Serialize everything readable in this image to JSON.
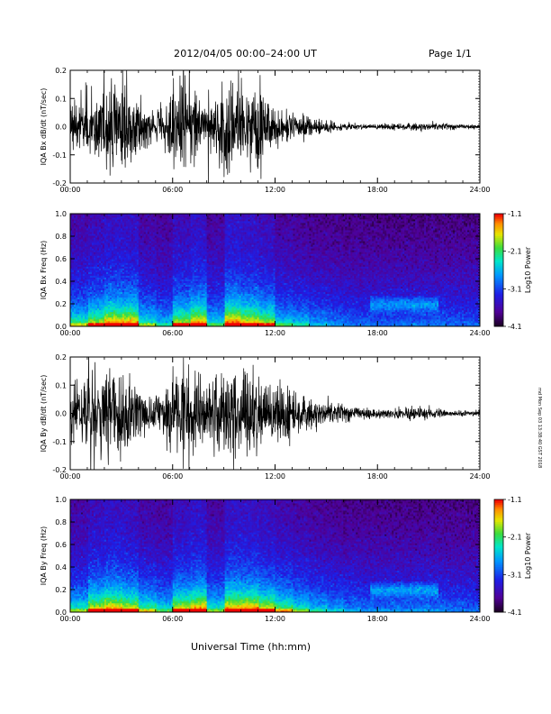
{
  "header": {
    "title": "2012/04/05  00:00–24:00 UT",
    "page": "Page 1/1"
  },
  "footer": {
    "xaxis_title": "Universal Time (hh:mm)"
  },
  "side_stamp": "md Mon Sep 03 13:38:40 GST 2018",
  "chart_data": [
    {
      "type": "line",
      "name": "panel-bx-timeseries",
      "ylabel": "IQA Bx dB/dt (nT/sec)",
      "xlim_hours": [
        0,
        24
      ],
      "ylim": [
        -0.2,
        0.2
      ],
      "xticks": [
        "00:00",
        "06:00",
        "12:00",
        "18:00",
        "24:00"
      ],
      "yticks": [
        "0.2",
        "0.1",
        "0.0",
        "-0.1",
        "-0.2"
      ],
      "amplitude_hourly": [
        0.14,
        0.2,
        0.26,
        0.26,
        0.12,
        0.08,
        0.2,
        0.26,
        0.1,
        0.28,
        0.24,
        0.2,
        0.1,
        0.08,
        0.05,
        0.035,
        0.02,
        0.015,
        0.015,
        0.015,
        0.02,
        0.02,
        0.015,
        0.012
      ]
    },
    {
      "type": "heatmap",
      "name": "panel-bx-spectrogram",
      "ylabel": "IQA Bx Freq (Hz)",
      "xlim_hours": [
        0,
        24
      ],
      "ylim": [
        0,
        1.0
      ],
      "xticks": [
        "00:00",
        "06:00",
        "12:00",
        "18:00",
        "24:00"
      ],
      "yticks": [
        "1.0",
        "0.8",
        "0.6",
        "0.4",
        "0.2",
        "0.0"
      ],
      "colorbar": {
        "label": "Log10 Power",
        "range": [
          -4.1,
          -1.1
        ],
        "ticks": [
          "-1.1",
          "-2.1",
          "-3.1",
          "-4.1"
        ]
      }
    },
    {
      "type": "line",
      "name": "panel-by-timeseries",
      "ylabel": "IQA By dB/dt (nT/sec)",
      "xlim_hours": [
        0,
        24
      ],
      "ylim": [
        -0.2,
        0.2
      ],
      "xticks": [
        "00:00",
        "06:00",
        "12:00",
        "18:00",
        "24:00"
      ],
      "yticks": [
        "0.2",
        "0.1",
        "0.0",
        "-0.1",
        "-0.2"
      ],
      "amplitude_hourly": [
        0.12,
        0.22,
        0.26,
        0.22,
        0.14,
        0.1,
        0.22,
        0.26,
        0.12,
        0.26,
        0.26,
        0.22,
        0.16,
        0.12,
        0.08,
        0.06,
        0.04,
        0.03,
        0.03,
        0.03,
        0.035,
        0.03,
        0.02,
        0.015
      ]
    },
    {
      "type": "heatmap",
      "name": "panel-by-spectrogram",
      "ylabel": "IQA By Freq (Hz)",
      "xlim_hours": [
        0,
        24
      ],
      "ylim": [
        0,
        1.0
      ],
      "xticks": [
        "00:00",
        "06:00",
        "12:00",
        "18:00",
        "24:00"
      ],
      "yticks": [
        "1.0",
        "0.8",
        "0.6",
        "0.4",
        "0.2",
        "0.0"
      ],
      "colorbar": {
        "label": "Log10 Power",
        "range": [
          -4.1,
          -1.1
        ],
        "ticks": [
          "-1.1",
          "-2.1",
          "-3.1",
          "-4.1"
        ]
      }
    }
  ]
}
